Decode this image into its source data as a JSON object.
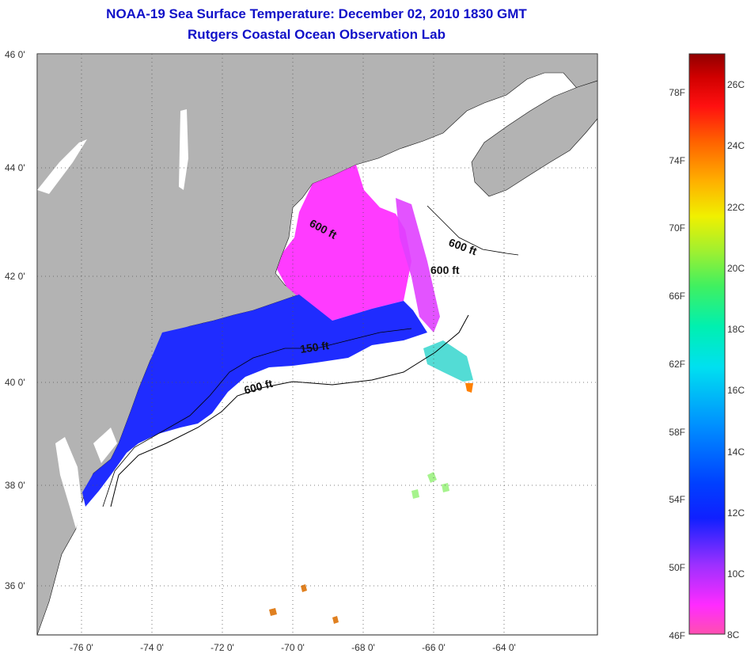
{
  "title": {
    "line1": "NOAA-19 Sea Surface Temperature:  December 02, 2010 1830 GMT",
    "line2": "Rutgers Coastal Ocean Observation Lab"
  },
  "map": {
    "lat_labels": [
      "46 0'",
      "44 0'",
      "42 0'",
      "40 0'",
      "38 0'",
      "36 0'"
    ],
    "lon_labels": [
      "-76 0'",
      "-74 0'",
      "-72 0'",
      "-70 0'",
      "-68 0'",
      "-66 0'",
      "-64 0'"
    ],
    "depth_labels": [
      "600 ft",
      "600 ft",
      "600 ft",
      "150 ft",
      "600 ft"
    ]
  },
  "colorbar": {
    "fahrenheit_labels": [
      "78F",
      "74F",
      "70F",
      "66F",
      "62F",
      "58F",
      "54F",
      "50F",
      "46F"
    ],
    "celsius_labels": [
      "26C",
      "24C",
      "22C",
      "20C",
      "18C",
      "16C",
      "14C",
      "12C",
      "10C",
      "8C"
    ]
  },
  "colors": {
    "title": "#1010c8",
    "land": "#b3b3b3",
    "grid": "#555555"
  }
}
